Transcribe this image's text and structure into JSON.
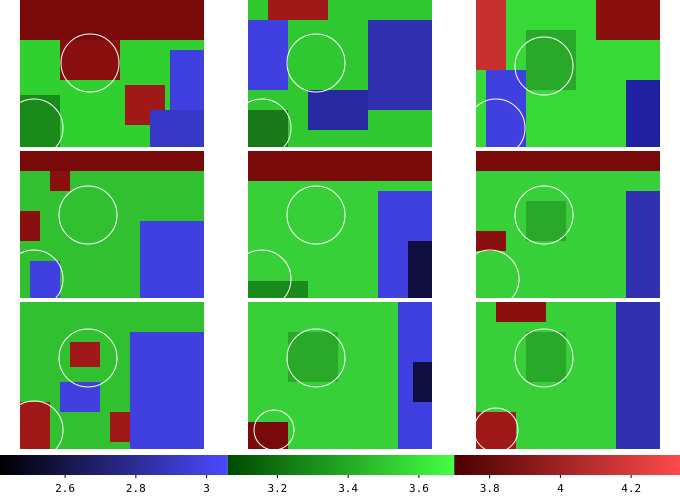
{
  "colorbar": {
    "range": [
      2.416,
      4.338
    ],
    "ticks": [
      2.6,
      2.8,
      3,
      3.2,
      3.4,
      3.6,
      3.8,
      4,
      4.2
    ],
    "segments": [
      {
        "from": 2.416,
        "to": 3.06,
        "colors": [
          "#000000",
          "#4a4aff"
        ]
      },
      {
        "from": 3.06,
        "to": 3.7,
        "colors": [
          "#004a00",
          "#44ff44"
        ]
      },
      {
        "from": 3.7,
        "to": 4.338,
        "colors": [
          "#4a0000",
          "#ff4a4a"
        ]
      }
    ]
  }
}
